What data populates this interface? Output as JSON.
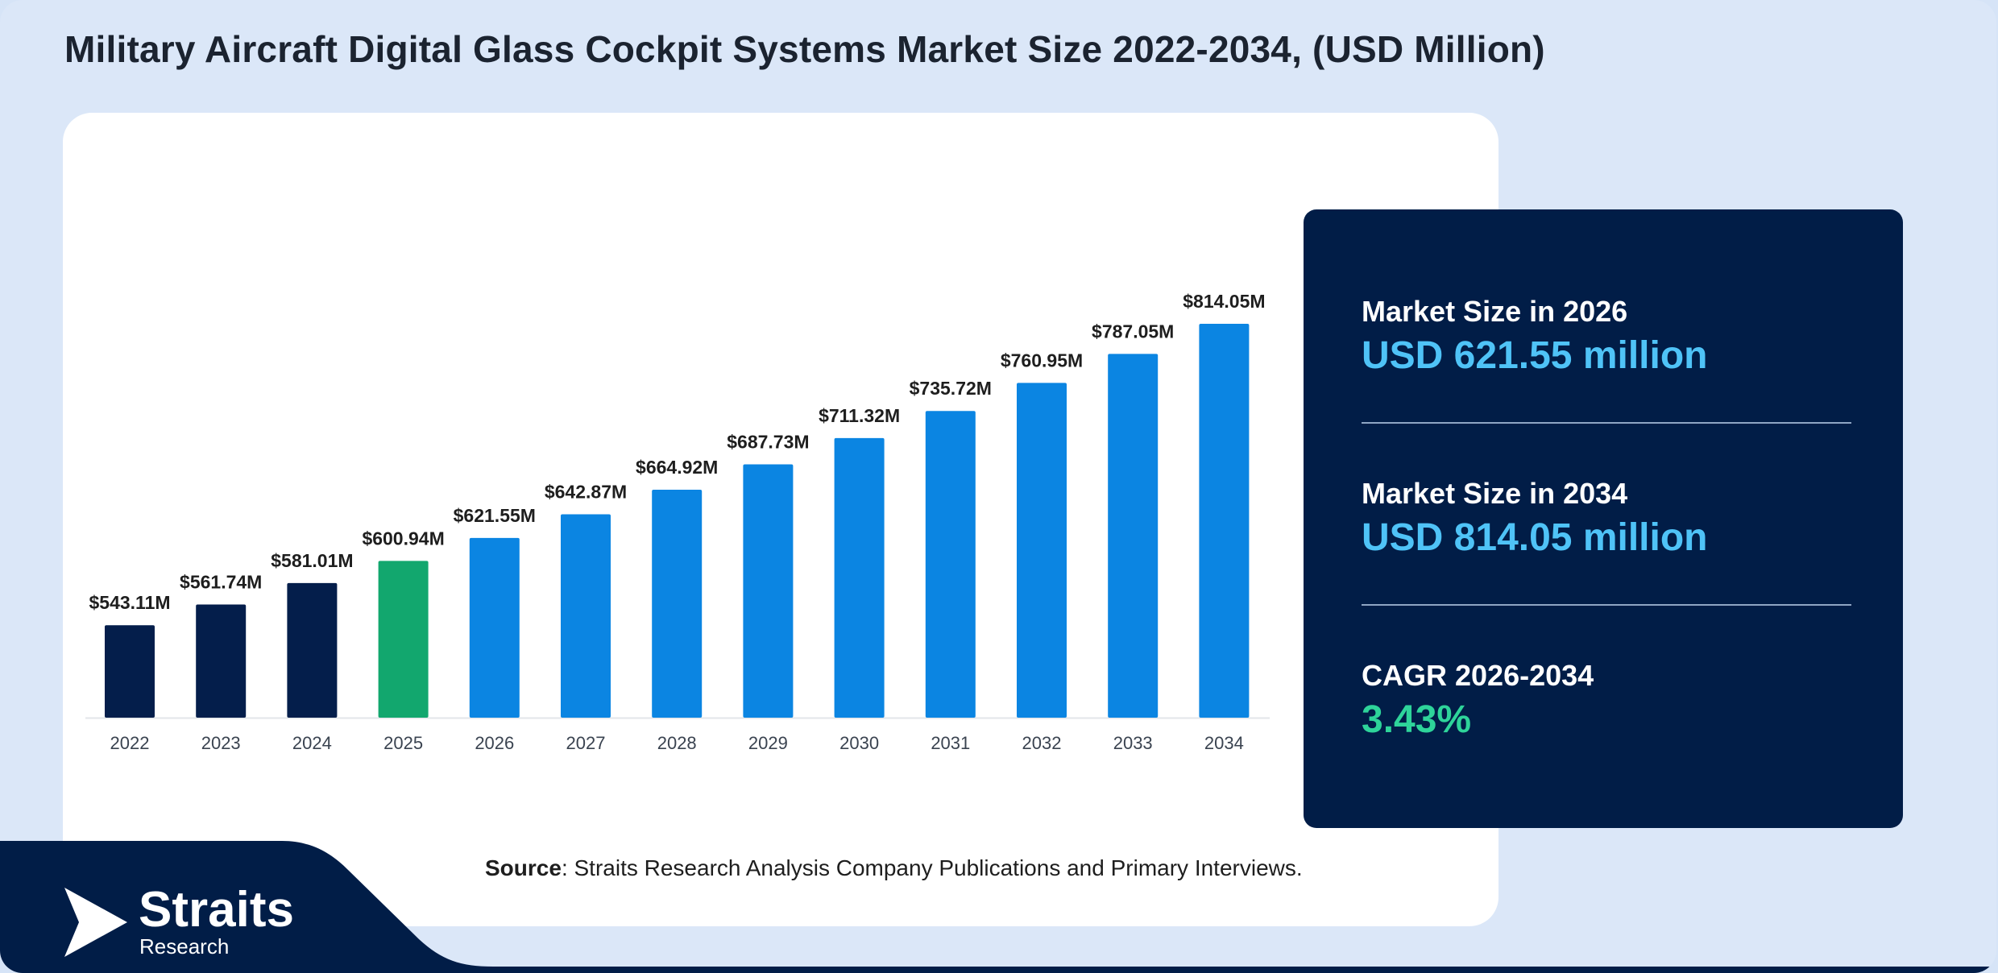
{
  "title": "Military Aircraft Digital Glass Cockpit Systems Market Size 2022-2034, (USD Million)",
  "colors": {
    "historical": "#041e4b",
    "base_year": "#12a76e",
    "forecast": "#0b85e2",
    "panel_bg": "#011d47",
    "highlight_value": "#4fc3f7",
    "cagr_value": "#2ed49a"
  },
  "chart_data": {
    "type": "bar",
    "title": "Military Aircraft Digital Glass Cockpit Systems Market Size 2022-2034, (USD Million)",
    "xlabel": "",
    "ylabel": "",
    "categories": [
      "2022",
      "2023",
      "2024",
      "2025",
      "2026",
      "2027",
      "2028",
      "2029",
      "2030",
      "2031",
      "2032",
      "2033",
      "2034"
    ],
    "values": [
      543.11,
      561.74,
      581.01,
      600.94,
      621.55,
      642.87,
      664.92,
      687.73,
      711.32,
      735.72,
      760.95,
      787.05,
      814.05
    ],
    "labels": [
      "$543.11M",
      "$561.74M",
      "$581.01M",
      "$600.94M",
      "$621.55M",
      "$642.87M",
      "$664.92M",
      "$687.73M",
      "$711.32M",
      "$735.72M",
      "$760.95M",
      "$787.05M",
      "$814.05M"
    ],
    "bar_colors": [
      "#041e4b",
      "#041e4b",
      "#041e4b",
      "#12a76e",
      "#0b85e2",
      "#0b85e2",
      "#0b85e2",
      "#0b85e2",
      "#0b85e2",
      "#0b85e2",
      "#0b85e2",
      "#0b85e2",
      "#0b85e2"
    ],
    "ylim": [
      460,
      830
    ],
    "grid": false,
    "legend": "none"
  },
  "stats": [
    {
      "label": "Market Size in 2026",
      "value": "USD 621.55 million"
    },
    {
      "label": "Market Size in 2034",
      "value": "USD 814.05 million"
    },
    {
      "label": "CAGR 2026-2034",
      "value": "3.43%"
    }
  ],
  "source": {
    "bold": "Source",
    "text": ": Straits Research Analysis Company Publications and Primary Interviews."
  },
  "brand": {
    "name": "Straits",
    "sub": "Research",
    "icon": "play-arrow-logo-icon"
  }
}
